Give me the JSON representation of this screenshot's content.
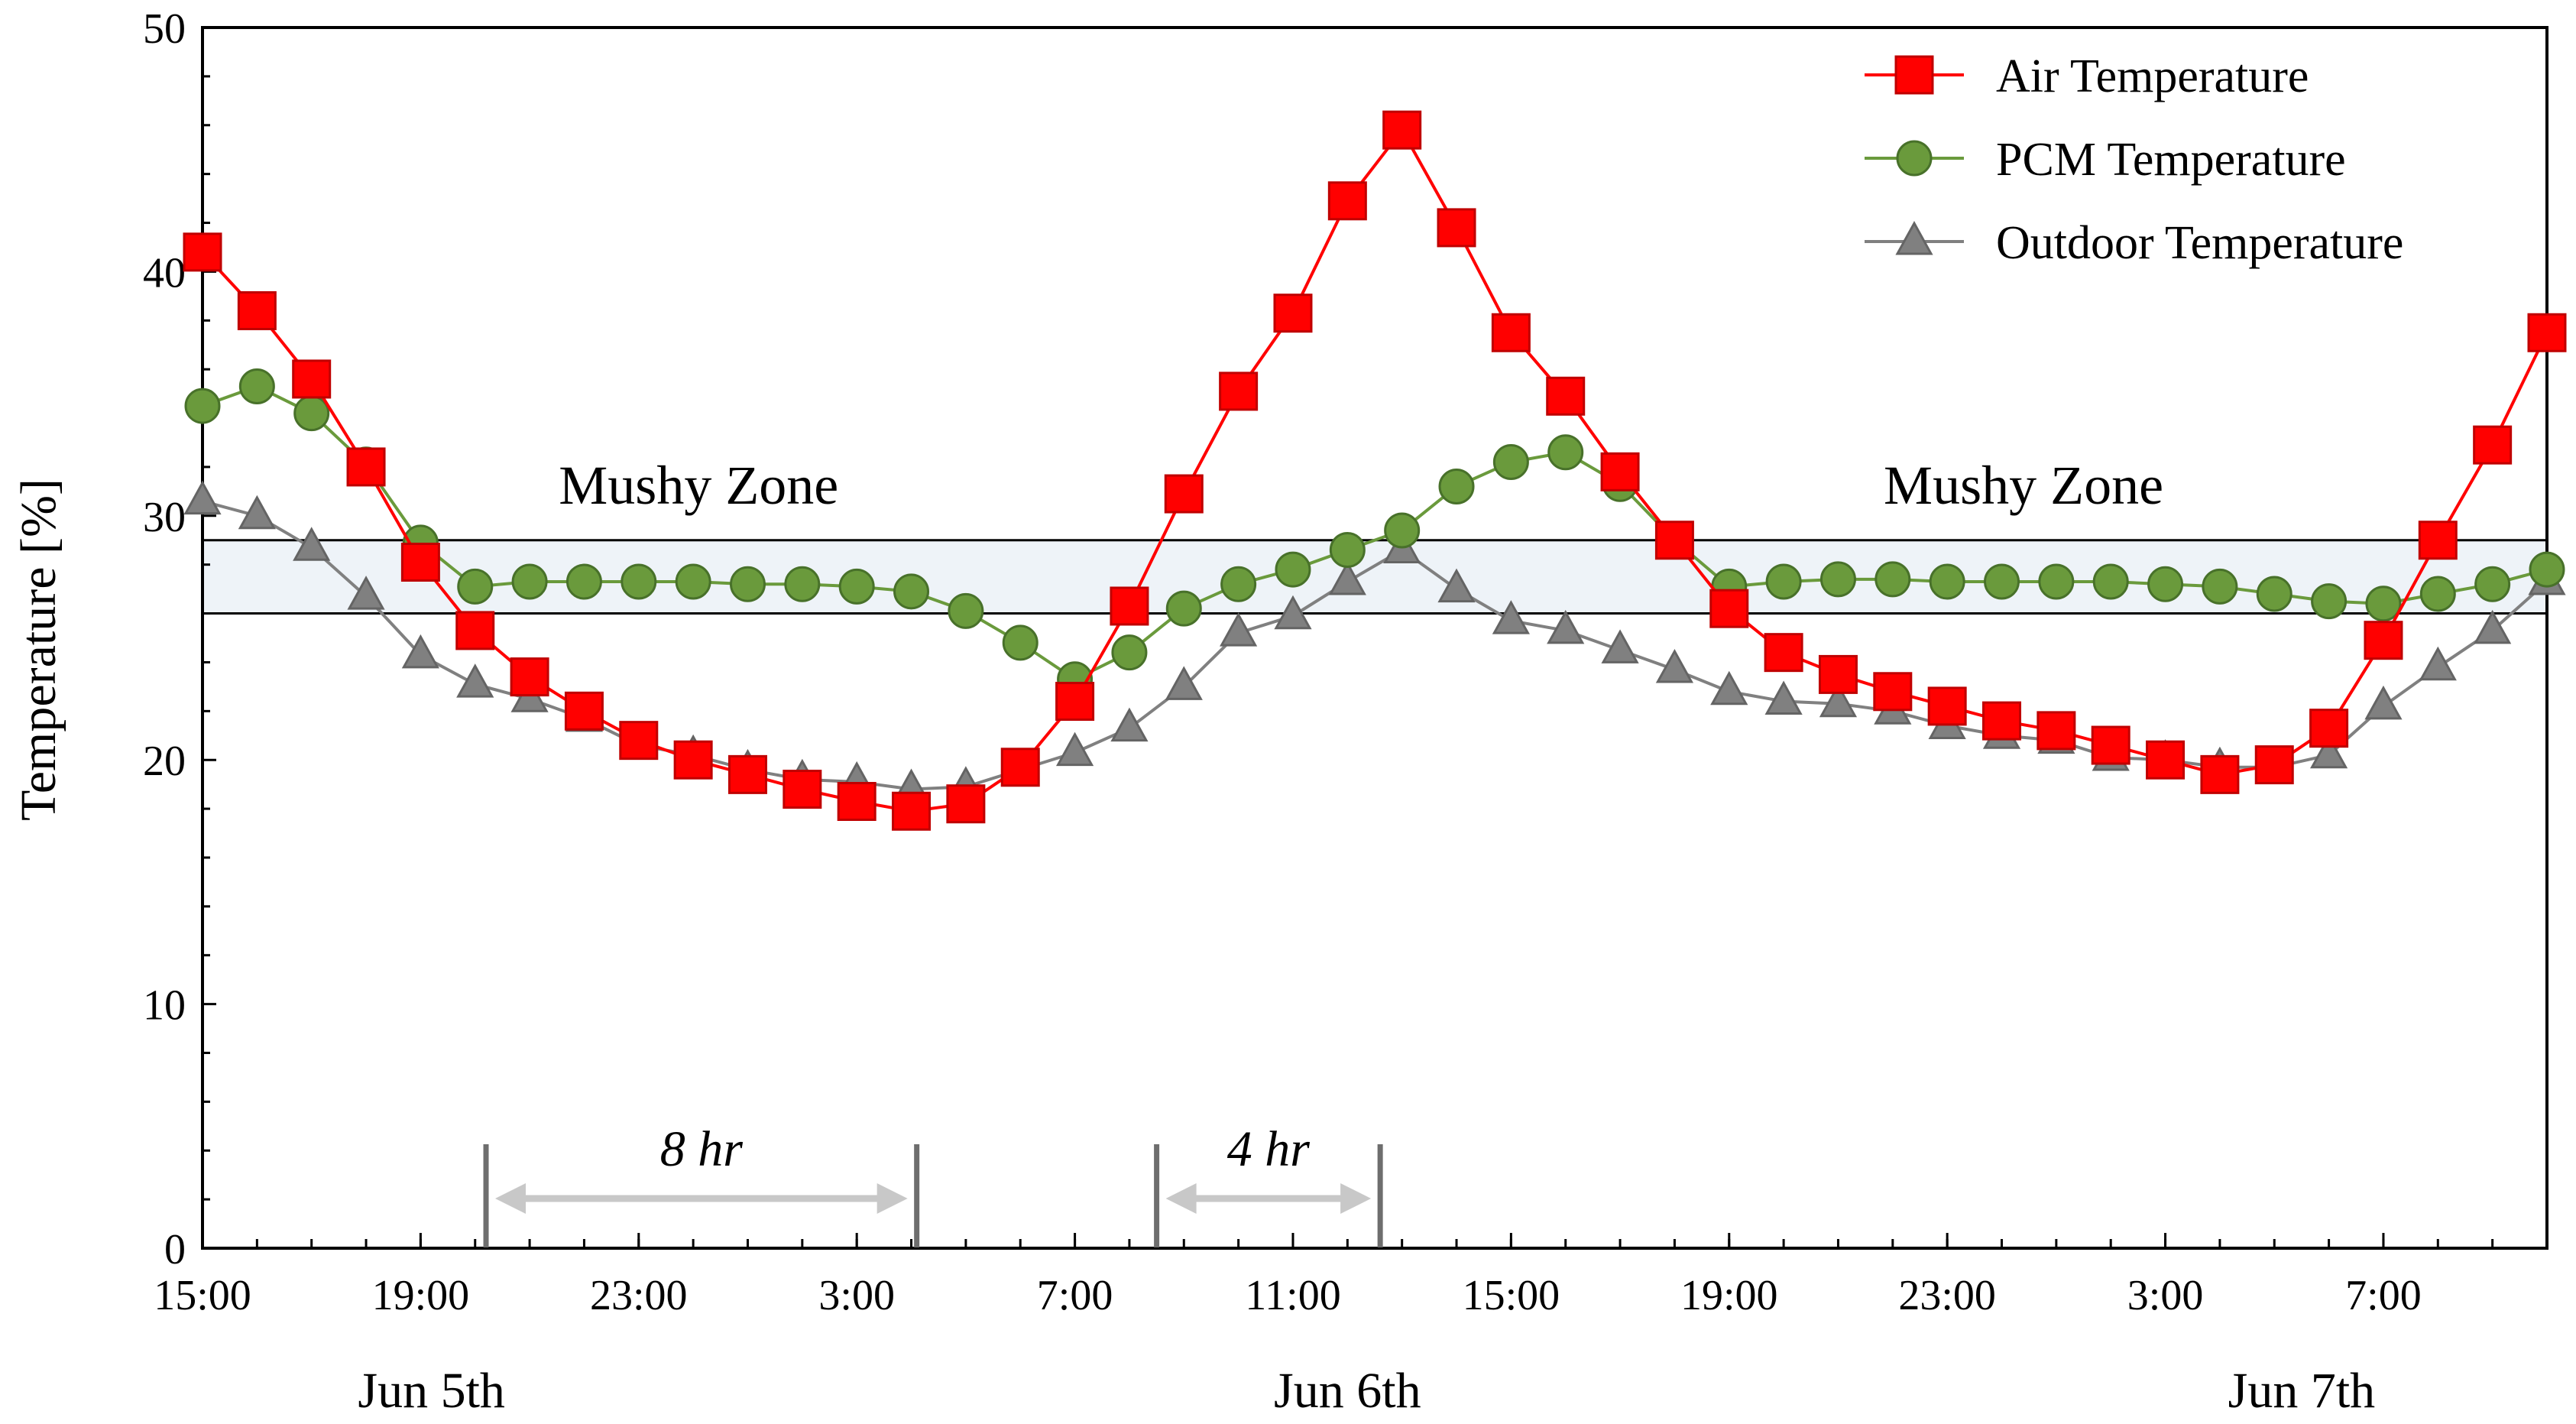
{
  "chart_data": {
    "type": "line",
    "xlabel": "",
    "ylabel": "Temperature [%]",
    "ylim": [
      0,
      50
    ],
    "yticks": [
      0,
      10,
      20,
      30,
      40,
      50
    ],
    "xlim": [
      0,
      43
    ],
    "xticks": [
      {
        "x": 0,
        "label": "15:00"
      },
      {
        "x": 4,
        "label": "19:00"
      },
      {
        "x": 8,
        "label": "23:00"
      },
      {
        "x": 12,
        "label": "3:00"
      },
      {
        "x": 16,
        "label": "7:00"
      },
      {
        "x": 20,
        "label": "11:00"
      },
      {
        "x": 24,
        "label": "15:00"
      },
      {
        "x": 28,
        "label": "19:00"
      },
      {
        "x": 32,
        "label": "23:00"
      },
      {
        "x": 36,
        "label": "3:00"
      },
      {
        "x": 40,
        "label": "7:00"
      }
    ],
    "day_labels": [
      {
        "x": 4.2,
        "label": "Jun 5th"
      },
      {
        "x": 21,
        "label": "Jun 6th"
      },
      {
        "x": 38.5,
        "label": "Jun 7th"
      }
    ],
    "mushy_zone": {
      "low": 26,
      "high": 29,
      "label": "Mushy Zone",
      "label_positions": [
        9.1,
        33.4
      ],
      "label_y": 30.5
    },
    "spans": [
      {
        "x1": 5.2,
        "x2": 13.1,
        "label": "8 hr"
      },
      {
        "x1": 17.5,
        "x2": 21.6,
        "label": "4 hr"
      }
    ],
    "series": [
      {
        "name": "Air Temperature",
        "color": "#ff0000",
        "edge": "#c00000",
        "marker": "square",
        "x": [
          0,
          1,
          2,
          3,
          4,
          5,
          6,
          7,
          8,
          9,
          10,
          11,
          12,
          13,
          14,
          15,
          16,
          17,
          18,
          19,
          20,
          21,
          22,
          23,
          24,
          25,
          26,
          27,
          28,
          29,
          30,
          31,
          32,
          33,
          34,
          35,
          36,
          37,
          38,
          39,
          40,
          41,
          42,
          43
        ],
        "values": [
          40.8,
          38.4,
          35.6,
          32.0,
          28.1,
          25.3,
          23.4,
          22.0,
          20.8,
          20.0,
          19.4,
          18.8,
          18.3,
          17.9,
          18.2,
          19.7,
          22.4,
          26.3,
          30.9,
          35.1,
          38.3,
          42.9,
          45.8,
          41.8,
          37.5,
          34.9,
          31.8,
          29.0,
          26.2,
          24.4,
          23.5,
          22.8,
          22.2,
          21.6,
          21.2,
          20.6,
          20.0,
          19.4,
          19.8,
          21.3,
          24.9,
          29.0,
          32.9,
          37.5
        ]
      },
      {
        "name": "PCM Temperature",
        "color": "#6a9a3c",
        "edge": "#48712a",
        "marker": "circle",
        "x": [
          0,
          1,
          2,
          3,
          4,
          5,
          6,
          7,
          8,
          9,
          10,
          11,
          12,
          13,
          14,
          15,
          16,
          17,
          18,
          19,
          20,
          21,
          22,
          23,
          24,
          25,
          26,
          27,
          28,
          29,
          30,
          31,
          32,
          33,
          34,
          35,
          36,
          37,
          38,
          39,
          40,
          41,
          42,
          43
        ],
        "values": [
          34.5,
          35.3,
          34.2,
          32.1,
          28.9,
          27.1,
          27.3,
          27.3,
          27.3,
          27.3,
          27.2,
          27.2,
          27.1,
          26.9,
          26.1,
          24.8,
          23.3,
          24.4,
          26.2,
          27.2,
          27.8,
          28.6,
          29.4,
          31.2,
          32.2,
          32.6,
          31.3,
          29.0,
          27.1,
          27.3,
          27.4,
          27.4,
          27.3,
          27.3,
          27.3,
          27.3,
          27.2,
          27.1,
          26.8,
          26.5,
          26.4,
          26.8,
          27.2,
          27.8
        ]
      },
      {
        "name": "Outdoor Temperature",
        "color": "#808080",
        "edge": "#646464",
        "marker": "triangle",
        "x": [
          0,
          1,
          2,
          3,
          4,
          5,
          6,
          7,
          8,
          9,
          10,
          11,
          12,
          13,
          14,
          15,
          16,
          17,
          18,
          19,
          20,
          21,
          22,
          23,
          24,
          25,
          26,
          27,
          28,
          29,
          30,
          31,
          32,
          33,
          34,
          35,
          36,
          37,
          38,
          39,
          40,
          41,
          42,
          43
        ],
        "values": [
          30.6,
          30.0,
          28.7,
          26.7,
          24.3,
          23.1,
          22.5,
          21.7,
          20.6,
          20.2,
          19.6,
          19.2,
          19.1,
          18.8,
          18.9,
          19.6,
          20.3,
          21.3,
          23.0,
          25.2,
          25.9,
          27.3,
          28.6,
          27.0,
          25.7,
          25.3,
          24.5,
          23.7,
          22.8,
          22.4,
          22.3,
          22.0,
          21.4,
          21.0,
          20.8,
          20.1,
          20.0,
          19.7,
          19.7,
          20.2,
          22.2,
          23.8,
          25.3,
          27.3
        ]
      }
    ]
  }
}
